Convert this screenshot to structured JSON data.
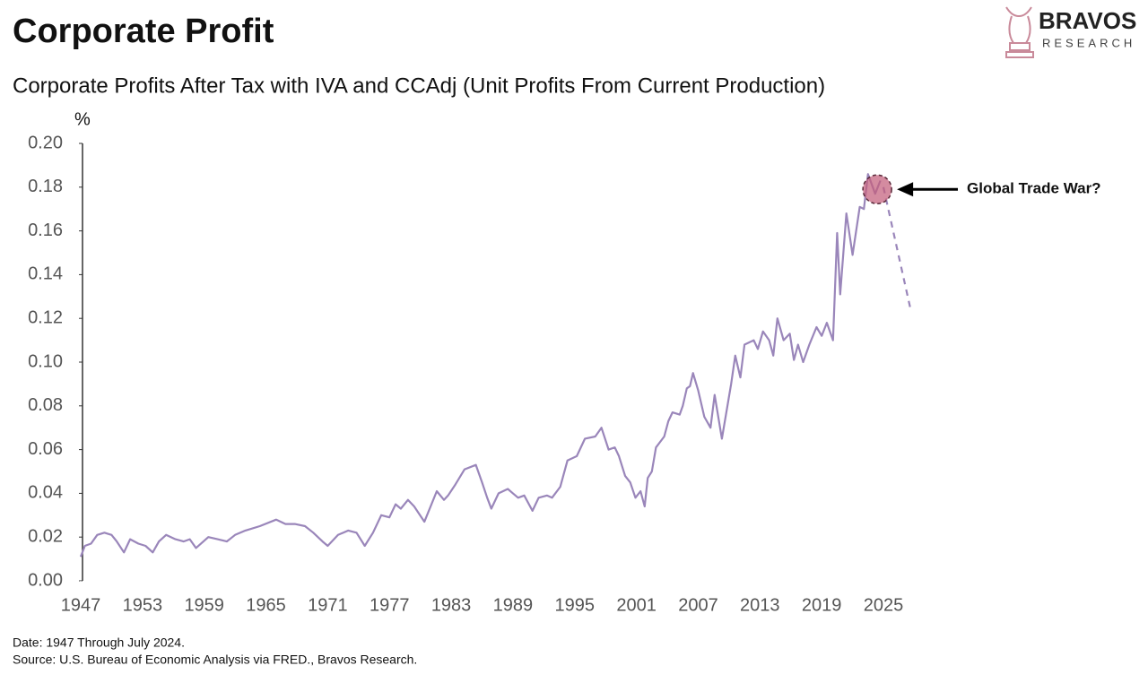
{
  "chart_data": {
    "type": "line",
    "title": "Corporate Profit",
    "subtitle": "Corporate Profits After Tax with IVA and CCAdj (Unit Profits From Current Production)",
    "y_label": "%",
    "brand": "BRAVOS",
    "brand_sub": "RESEARCH",
    "notes": [
      "Date: 1947 Through July 2024.",
      "Source: U.S. Bureau of Economic Analysis via FRED., Bravos Research."
    ],
    "color": "#9a86ba",
    "x": [
      1947.0,
      1947.4,
      1948.0,
      1948.6,
      1949.3,
      1950.0,
      1950.5,
      1951.2,
      1951.8,
      1952.6,
      1953.3,
      1954.0,
      1954.6,
      1955.3,
      1956.2,
      1957.0,
      1957.6,
      1958.2,
      1959.4,
      1960.3,
      1961.2,
      1962.0,
      1963.0,
      1964.4,
      1966.0,
      1966.9,
      1967.8,
      1968.8,
      1969.6,
      1970.5,
      1971.0,
      1972.0,
      1973.0,
      1973.8,
      1974.6,
      1975.4,
      1976.2,
      1977.0,
      1977.6,
      1978.1,
      1978.8,
      1979.4,
      1980.4,
      1981.6,
      1982.3,
      1982.7,
      1983.4,
      1984.3,
      1985.4,
      1986.0,
      1986.5,
      1986.9,
      1987.6,
      1988.5,
      1989.0,
      1989.5,
      1990.1,
      1990.9,
      1991.5,
      1992.3,
      1992.8,
      1993.6,
      1994.3,
      1995.2,
      1996.0,
      1997.0,
      1997.6,
      1998.3,
      1998.9,
      1999.3,
      1999.9,
      2000.4,
      2000.9,
      2001.4,
      2001.8,
      2002.1,
      2002.5,
      2002.9,
      2003.7,
      2004.1,
      2004.5,
      2005.2,
      2005.5,
      2005.9,
      2006.2,
      2006.5,
      2007.0,
      2007.6,
      2008.2,
      2008.6,
      2009.3,
      2010.2,
      2010.6,
      2011.1,
      2011.5,
      2012.4,
      2012.8,
      2013.3,
      2013.9,
      2014.3,
      2014.7,
      2015.3,
      2015.9,
      2016.3,
      2016.7,
      2017.2,
      2017.8,
      2018.5,
      2019.0,
      2019.5,
      2020.1,
      2020.5,
      2020.8,
      2021.4,
      2022.0,
      2022.7,
      2023.1,
      2023.5,
      2024.2,
      2024.7
    ],
    "values": [
      0.011,
      0.016,
      0.017,
      0.021,
      0.022,
      0.021,
      0.018,
      0.013,
      0.019,
      0.017,
      0.016,
      0.013,
      0.018,
      0.021,
      0.019,
      0.018,
      0.019,
      0.015,
      0.02,
      0.019,
      0.018,
      0.021,
      0.023,
      0.025,
      0.028,
      0.026,
      0.026,
      0.025,
      0.022,
      0.018,
      0.016,
      0.021,
      0.023,
      0.022,
      0.016,
      0.022,
      0.03,
      0.029,
      0.035,
      0.033,
      0.037,
      0.034,
      0.027,
      0.041,
      0.037,
      0.039,
      0.044,
      0.051,
      0.053,
      0.045,
      0.038,
      0.033,
      0.04,
      0.042,
      0.04,
      0.038,
      0.039,
      0.032,
      0.038,
      0.039,
      0.038,
      0.043,
      0.055,
      0.057,
      0.065,
      0.066,
      0.07,
      0.06,
      0.061,
      0.057,
      0.048,
      0.045,
      0.038,
      0.041,
      0.034,
      0.047,
      0.05,
      0.061,
      0.066,
      0.073,
      0.077,
      0.076,
      0.08,
      0.088,
      0.089,
      0.095,
      0.087,
      0.075,
      0.07,
      0.085,
      0.065,
      0.09,
      0.103,
      0.093,
      0.108,
      0.11,
      0.106,
      0.114,
      0.11,
      0.103,
      0.12,
      0.11,
      0.113,
      0.101,
      0.108,
      0.1,
      0.108,
      0.116,
      0.112,
      0.118,
      0.11,
      0.159,
      0.131,
      0.168,
      0.149,
      0.171,
      0.17,
      0.186,
      0.177,
      0.183
    ],
    "projection": {
      "x": [
        2025.0,
        2027.6
      ],
      "values": [
        0.18,
        0.125
      ]
    },
    "annotation": {
      "text": "Global Trade War?",
      "x": 2024.4,
      "y": 0.179
    },
    "xlim": [
      1947,
      2025
    ],
    "xticks": [
      1947,
      1953,
      1959,
      1965,
      1971,
      1977,
      1983,
      1989,
      1995,
      2001,
      2007,
      2013,
      2019,
      2025
    ],
    "ylim": [
      0,
      0.2
    ],
    "yticks": [
      {
        "value": 0,
        "label": "0.00"
      },
      {
        "value": 0.02,
        "label": "0.02"
      },
      {
        "value": 0.04,
        "label": "0.04"
      },
      {
        "value": 0.06,
        "label": "0.06"
      },
      {
        "value": 0.08,
        "label": "0.08"
      },
      {
        "value": 0.1,
        "label": "0.10"
      },
      {
        "value": 0.12,
        "label": "0.12"
      },
      {
        "value": 0.14,
        "label": "0.14"
      },
      {
        "value": 0.16,
        "label": "0.16"
      },
      {
        "value": 0.18,
        "label": "0.18"
      },
      {
        "value": 0.2,
        "label": "0.20"
      }
    ]
  }
}
